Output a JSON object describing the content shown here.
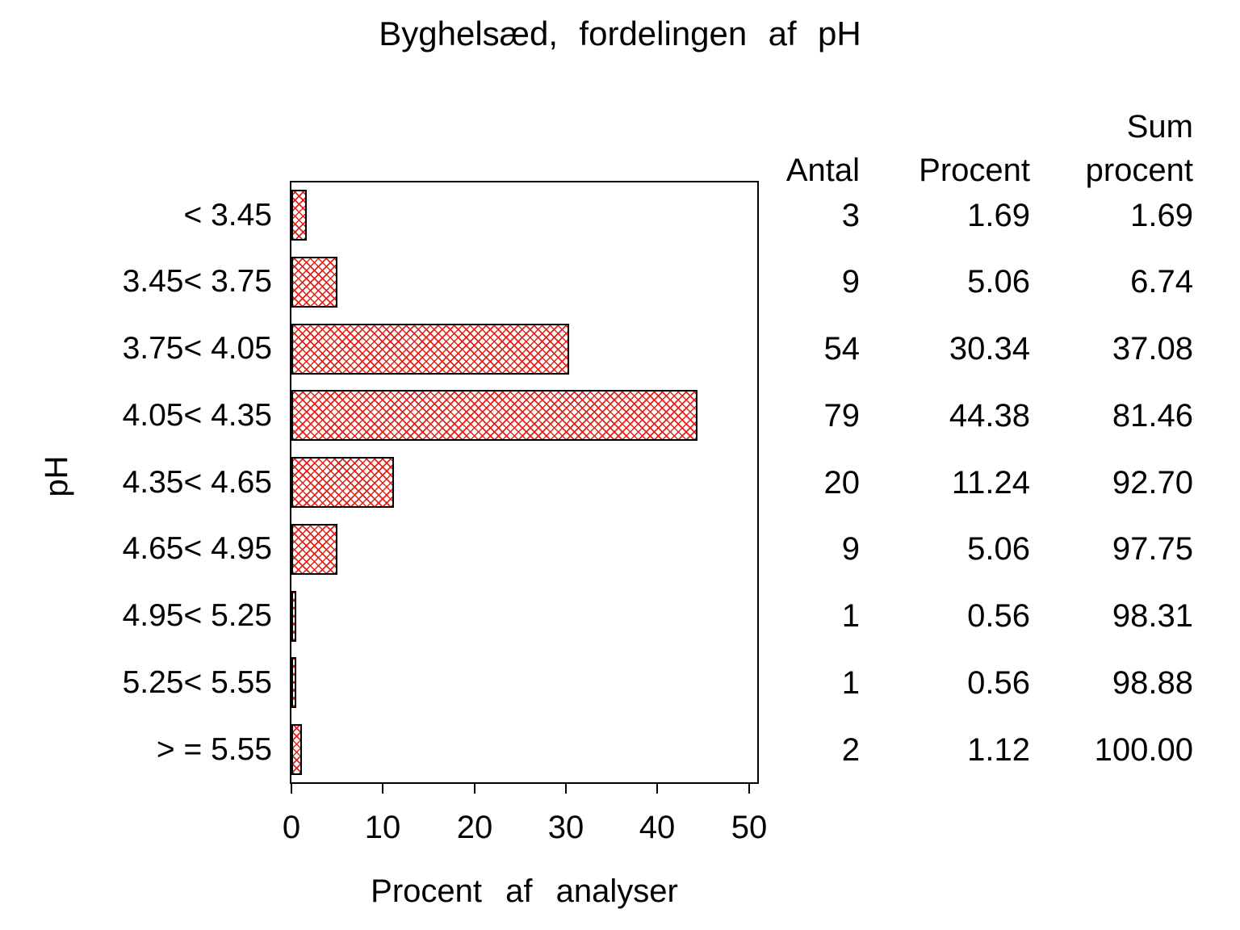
{
  "title": "Byghelsæd,  fordelingen  af  pH",
  "colors": {
    "hatch_red": "#e32118",
    "frame_black": "#000000",
    "background": "#ffffff"
  },
  "chart_data": {
    "type": "bar",
    "orientation": "horizontal",
    "title": "Byghelsæd, fordelingen af pH",
    "ylabel": "pH",
    "xlabel": "Procent  af  analyser",
    "xlim": [
      0,
      51
    ],
    "xticks": [
      0,
      10,
      20,
      30,
      40,
      50
    ],
    "grid": false,
    "bar_style": "red diagonal crosshatch with black outline",
    "categories": [
      "< 3.45",
      "3.45< 3.75",
      "3.75< 4.05",
      "4.05< 4.35",
      "4.35< 4.65",
      "4.65< 4.95",
      "4.95< 5.25",
      "5.25< 5.55",
      "> = 5.55"
    ],
    "series": [
      {
        "name": "Procent af analyser",
        "values": [
          1.69,
          5.06,
          30.34,
          44.38,
          11.24,
          5.06,
          0.56,
          0.56,
          1.12
        ]
      }
    ]
  },
  "table": {
    "headers": {
      "antal": "Antal",
      "procent": "Procent",
      "sum_line1": "Sum",
      "sum_line2": "procent"
    },
    "rows": [
      {
        "antal": "3",
        "procent": "1.69",
        "sum": "1.69"
      },
      {
        "antal": "9",
        "procent": "5.06",
        "sum": "6.74"
      },
      {
        "antal": "54",
        "procent": "30.34",
        "sum": "37.08"
      },
      {
        "antal": "79",
        "procent": "44.38",
        "sum": "81.46"
      },
      {
        "antal": "20",
        "procent": "11.24",
        "sum": "92.70"
      },
      {
        "antal": "9",
        "procent": "5.06",
        "sum": "97.75"
      },
      {
        "antal": "1",
        "procent": "0.56",
        "sum": "98.31"
      },
      {
        "antal": "1",
        "procent": "0.56",
        "sum": "98.88"
      },
      {
        "antal": "2",
        "procent": "1.12",
        "sum": "100.00"
      }
    ]
  }
}
